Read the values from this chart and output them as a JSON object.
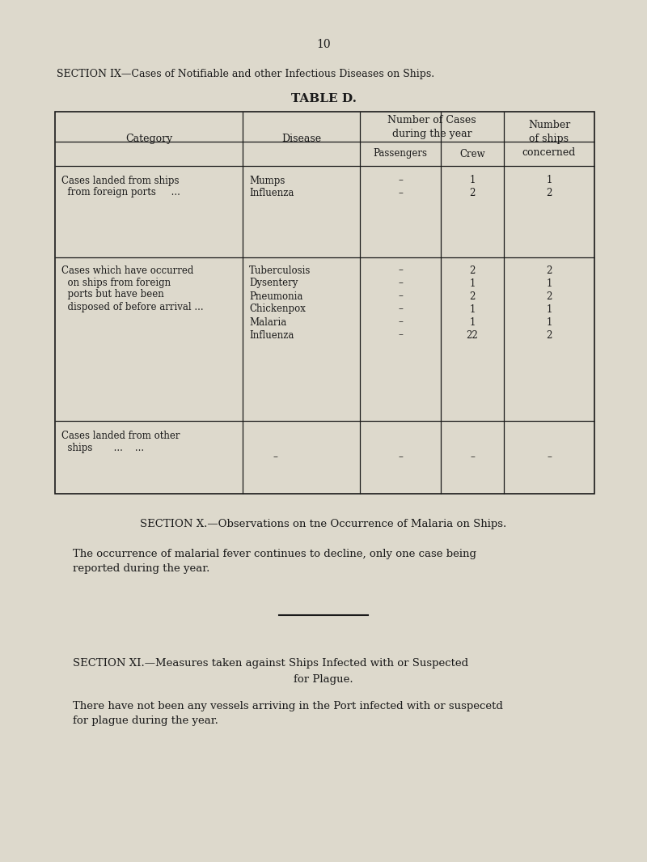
{
  "page_number": "10",
  "section_ix_title": "SECTION IX—Cases of Notifiable and other Infectious Diseases on Ships.",
  "table_title": "TABLE D.",
  "bg_color": "#ddd9cc",
  "text_color": "#1a1a1a",
  "table": {
    "rows": [
      {
        "category_lines": [
          "Cases landed from ships",
          "  from foreign ports     ..."
        ],
        "diseases": [
          "Mumps",
          "Influenza"
        ],
        "passengers": [
          "–",
          "–"
        ],
        "crew": [
          "1",
          "2"
        ],
        "ships": [
          "1",
          "2"
        ]
      },
      {
        "category_lines": [
          "Cases which have occurred",
          "  on ships from foreign",
          "  ports but have been",
          "  disposed of before arrival ..."
        ],
        "diseases": [
          "Tuberculosis",
          "Dysentery",
          "Pneumonia",
          "Chickenpox",
          "Malaria",
          "Influenza"
        ],
        "passengers": [
          "–",
          "–",
          "–",
          "–",
          "–",
          "–"
        ],
        "crew": [
          "2",
          "1",
          "2",
          "1",
          "1",
          "22"
        ],
        "ships": [
          "2",
          "1",
          "2",
          "1",
          "1",
          "2"
        ]
      },
      {
        "category_lines": [
          "Cases landed from other",
          "  ships       ...    ..."
        ],
        "diseases": [
          "–"
        ],
        "passengers": [
          "–"
        ],
        "crew": [
          "–"
        ],
        "ships": [
          "–"
        ]
      }
    ]
  },
  "section_x_title": "SECTION X.—Observations on tne Occurrence of Malaria on Ships.",
  "section_x_body": "The occurrence of malarial fever continues to decline, only one case being\nreported during the year.",
  "section_xi_title_line1": "SECTION XI.—Measures taken against Ships Infected with or Suspected",
  "section_xi_title_line2": "for Plague.",
  "section_xi_body": "There have not been any vessels arriving in the Port infected with or suspecetd\nfor plague during the year."
}
